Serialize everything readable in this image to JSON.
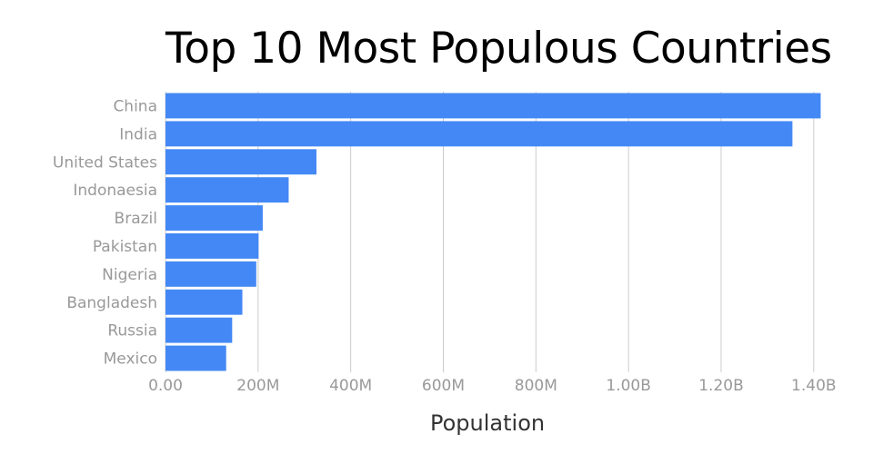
{
  "chart_data": {
    "type": "bar",
    "orientation": "horizontal",
    "title": "Top 10 Most Populous Countries",
    "xlabel": "Population",
    "ylabel": "",
    "categories": [
      "China",
      "India",
      "United States",
      "Indonaesia",
      "Brazil",
      "Pakistan",
      "Nigeria",
      "Bangladesh",
      "Russia",
      "Mexico"
    ],
    "values": [
      1415000000,
      1354000000,
      326000000,
      266000000,
      210000000,
      201000000,
      196000000,
      166000000,
      144000000,
      131000000
    ],
    "xlim": [
      0,
      1420000000
    ],
    "ticks": [
      {
        "value": 0,
        "label": "0.00"
      },
      {
        "value": 200000000,
        "label": "200M"
      },
      {
        "value": 400000000,
        "label": "400M"
      },
      {
        "value": 600000000,
        "label": "600M"
      },
      {
        "value": 800000000,
        "label": "800M"
      },
      {
        "value": 1000000000,
        "label": "1.00B"
      },
      {
        "value": 1200000000,
        "label": "1.20B"
      },
      {
        "value": 1400000000,
        "label": "1.40B"
      }
    ],
    "grid": true,
    "legend": "none",
    "bar_color": "#4488F5",
    "grid_color": "#CCCCCC"
  }
}
